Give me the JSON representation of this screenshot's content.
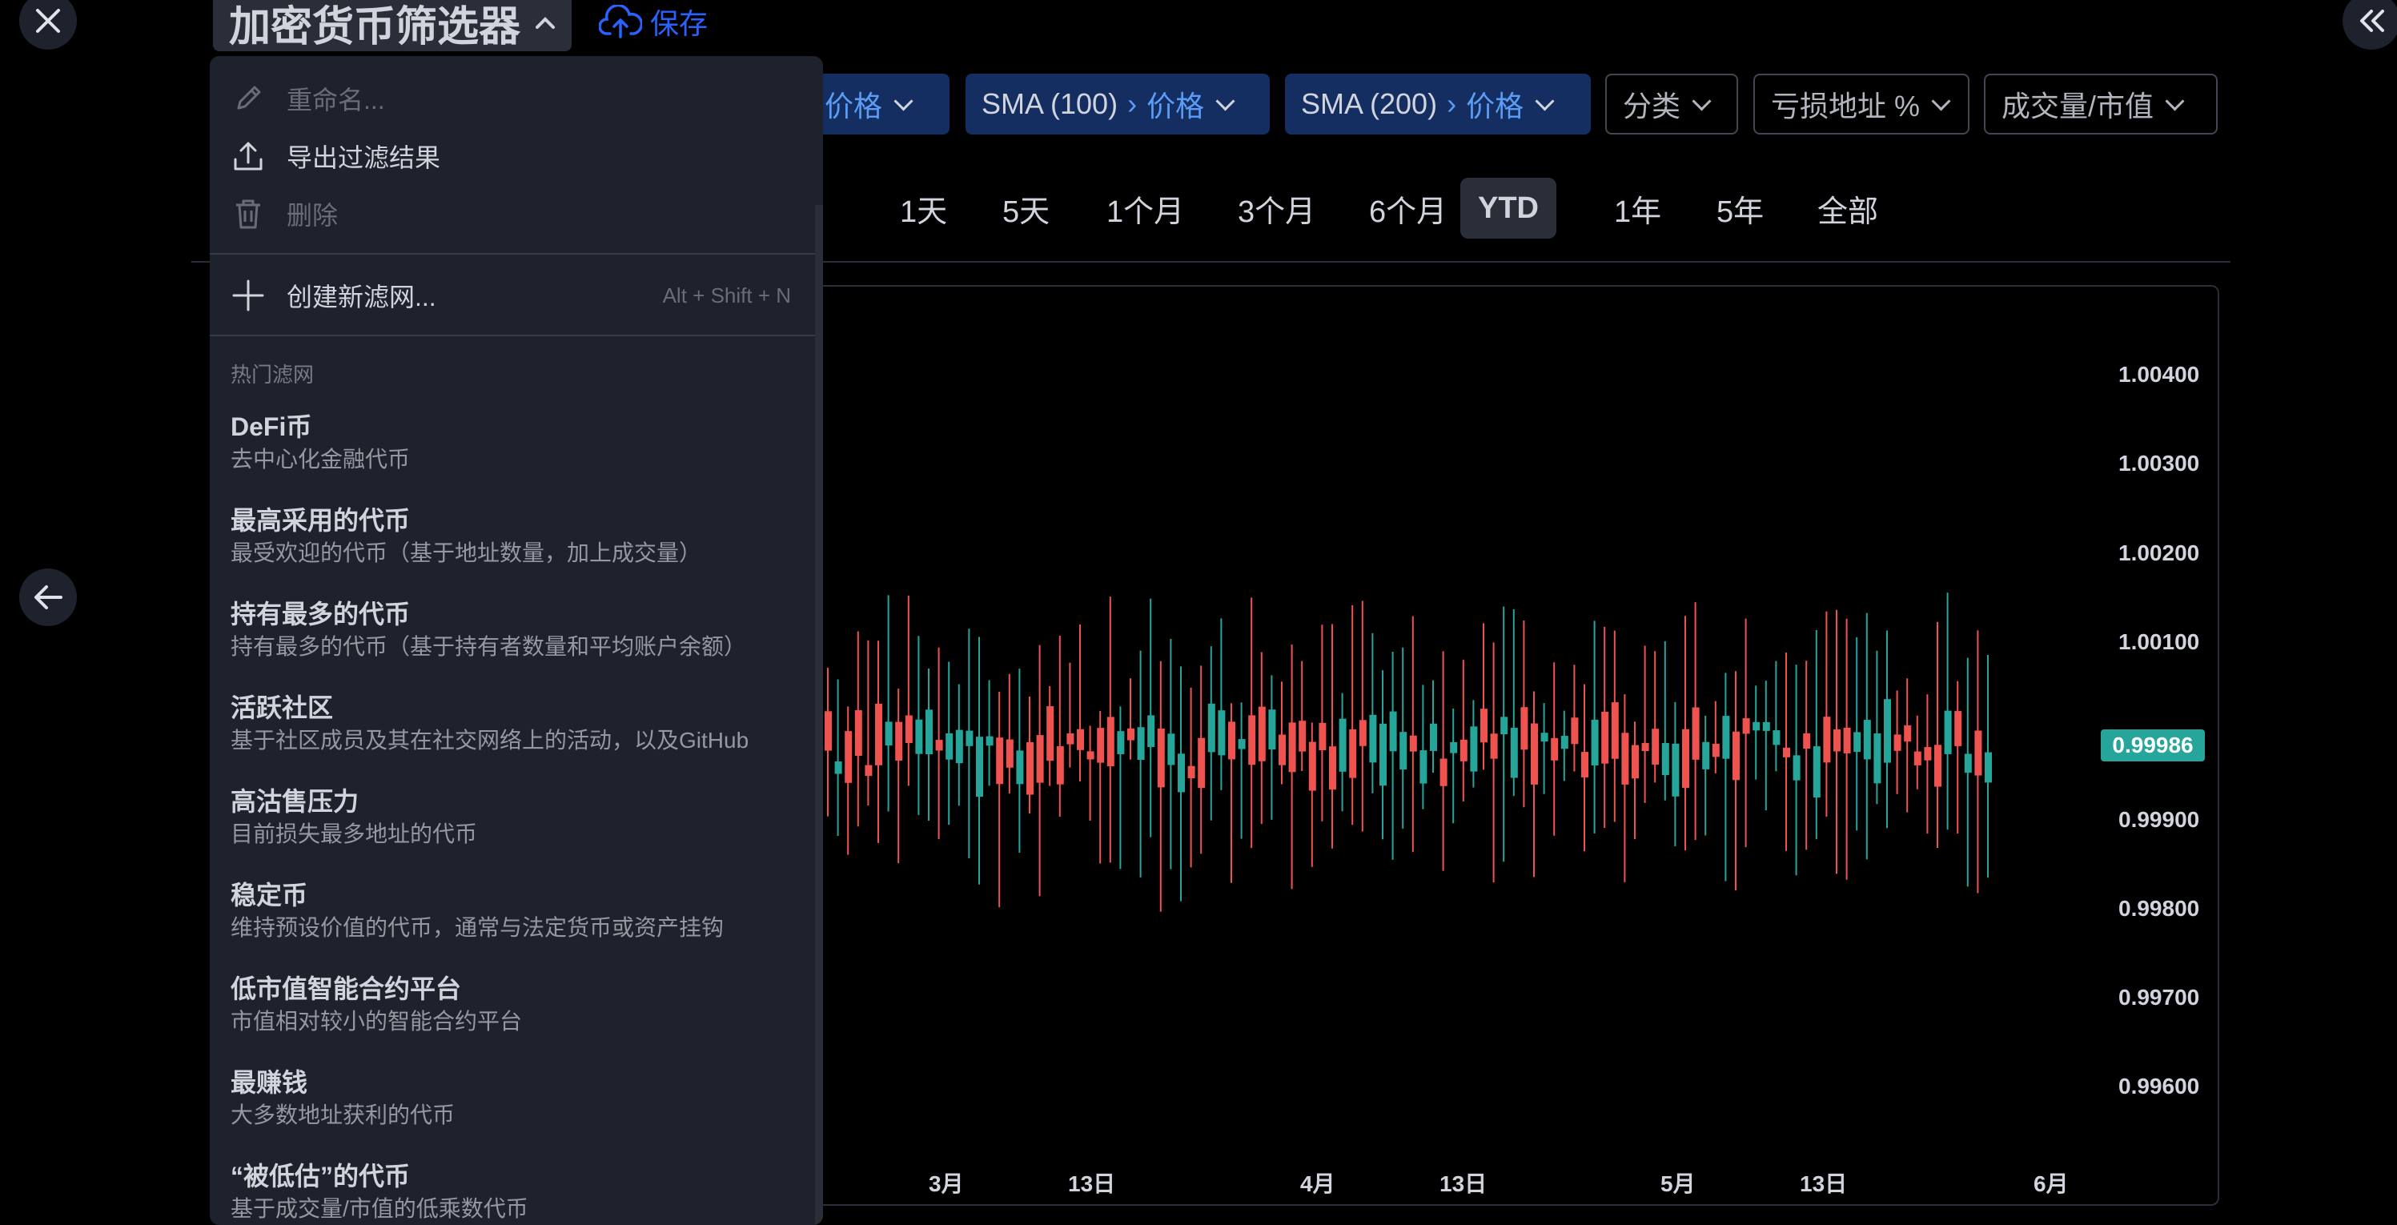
{
  "header": {
    "title": "加密货币筛选器",
    "save_label": "保存"
  },
  "filters": [
    {
      "label": "",
      "value": "价格"
    },
    {
      "label": "SMA (100)",
      "value": "价格"
    },
    {
      "label": "SMA (200)",
      "value": "价格"
    }
  ],
  "outline_filters": [
    "分类",
    "亏损地址 %",
    "成交量/市值"
  ],
  "timeframes": [
    "1天",
    "5天",
    "1个月",
    "3个月",
    "6个月",
    "YTD",
    "1年",
    "5年",
    "全部"
  ],
  "active_timeframe": "YTD",
  "chart": {
    "y_labels": [
      "1.00400",
      "1.00300",
      "1.00200",
      "1.00100",
      "0.99900",
      "0.99800",
      "0.99700",
      "0.99600"
    ],
    "x_labels": [
      "3月",
      "13日",
      "4月",
      "13日",
      "5月",
      "13日",
      "6月"
    ],
    "last_price": "0.99986",
    "up_color": "#26a69a",
    "down_color": "#ef5350"
  },
  "menu": {
    "rename": "重命名...",
    "export": "导出过滤结果",
    "delete": "删除",
    "create_new": "创建新滤网...",
    "create_shortcut": "Alt + Shift + N",
    "popular_header": "热门滤网",
    "screens": [
      {
        "title": "DeFi币",
        "desc": "去中心化金融代币"
      },
      {
        "title": "最高采用的代币",
        "desc": "最受欢迎的代币（基于地址数量，加上成交量）"
      },
      {
        "title": "持有最多的代币",
        "desc": "持有最多的代币（基于持有者数量和平均账户余额）"
      },
      {
        "title": "活跃社区",
        "desc": "基于社区成员及其在社交网络上的活动，以及GitHub"
      },
      {
        "title": "高沽售压力",
        "desc": "目前损失最多地址的代币"
      },
      {
        "title": "稳定币",
        "desc": "维持预设价值的代币，通常与法定货币或资产挂钩"
      },
      {
        "title": "低市值智能合约平台",
        "desc": "市值相对较小的智能合约平台"
      },
      {
        "title": "最赚钱",
        "desc": "大多数地址获利的代币"
      },
      {
        "title": "“被低估”的代币",
        "desc": "基于成交量/市值的低乘数代币"
      }
    ]
  }
}
